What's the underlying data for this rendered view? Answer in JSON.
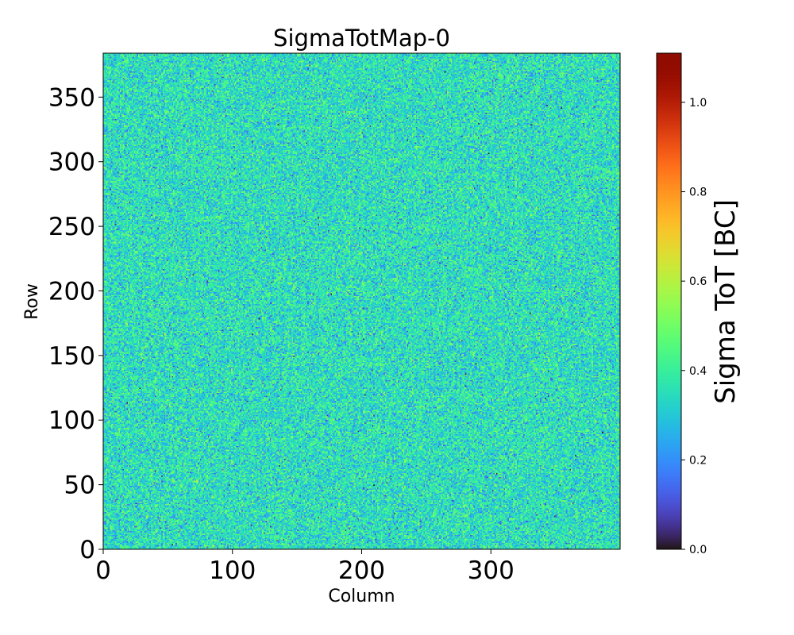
{
  "chart_data": {
    "type": "heatmap",
    "title": "SigmaTotMap-0",
    "xlabel": "Column",
    "ylabel": "Row",
    "colorbar_label": "Sigma ToT [BC]",
    "colormap": "turbo",
    "xlim": [
      0,
      400
    ],
    "ylim": [
      0,
      384
    ],
    "clim": [
      0.0,
      1.11
    ],
    "grid": false,
    "x_ticks": [
      0,
      100,
      200,
      300
    ],
    "x_tick_labels": [
      "0",
      "100",
      "200",
      "300"
    ],
    "y_ticks": [
      0,
      50,
      100,
      150,
      200,
      250,
      300,
      350
    ],
    "y_tick_labels": [
      "0",
      "50",
      "100",
      "150",
      "200",
      "250",
      "300",
      "350"
    ],
    "colorbar_ticks": [
      0.0,
      0.2,
      0.4,
      0.6,
      0.8,
      1.0
    ],
    "colorbar_tick_labels": [
      "0.0",
      "0.2",
      "0.4",
      "0.6",
      "0.8",
      "1.0"
    ],
    "value_distribution": {
      "typical_min": 0.0,
      "typical_max": 0.55,
      "mean_approx": 0.35,
      "std_approx": 0.09,
      "note_cells": "400 columns x 384 rows of per-pixel sigma ToT values, noisy uniform field"
    }
  }
}
